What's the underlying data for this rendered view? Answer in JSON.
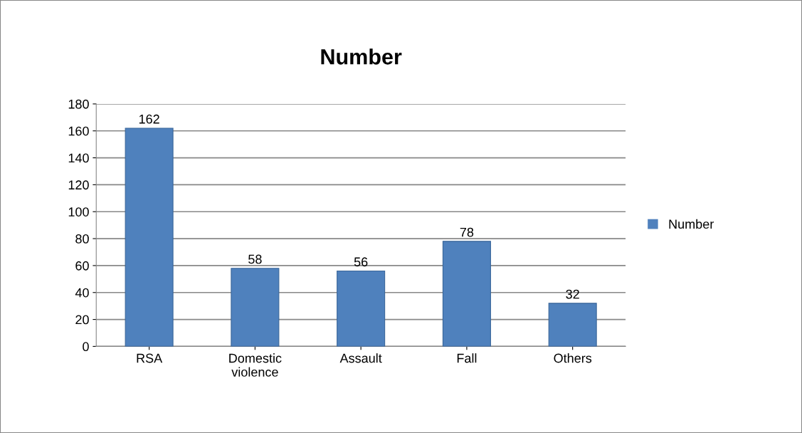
{
  "chart_data": {
    "type": "bar",
    "title": "Number",
    "categories": [
      "RSA",
      "Domestic\nviolence",
      "Assault",
      "Fall",
      "Others"
    ],
    "series": [
      {
        "name": "Number",
        "color": "#4f81bd",
        "values": [
          162,
          58,
          56,
          78,
          32
        ]
      }
    ],
    "ylim": [
      0,
      180
    ],
    "yticks": [
      0,
      20,
      40,
      60,
      80,
      100,
      120,
      140,
      160,
      180
    ],
    "grid": "y",
    "legend": "right",
    "data_labels": true
  }
}
